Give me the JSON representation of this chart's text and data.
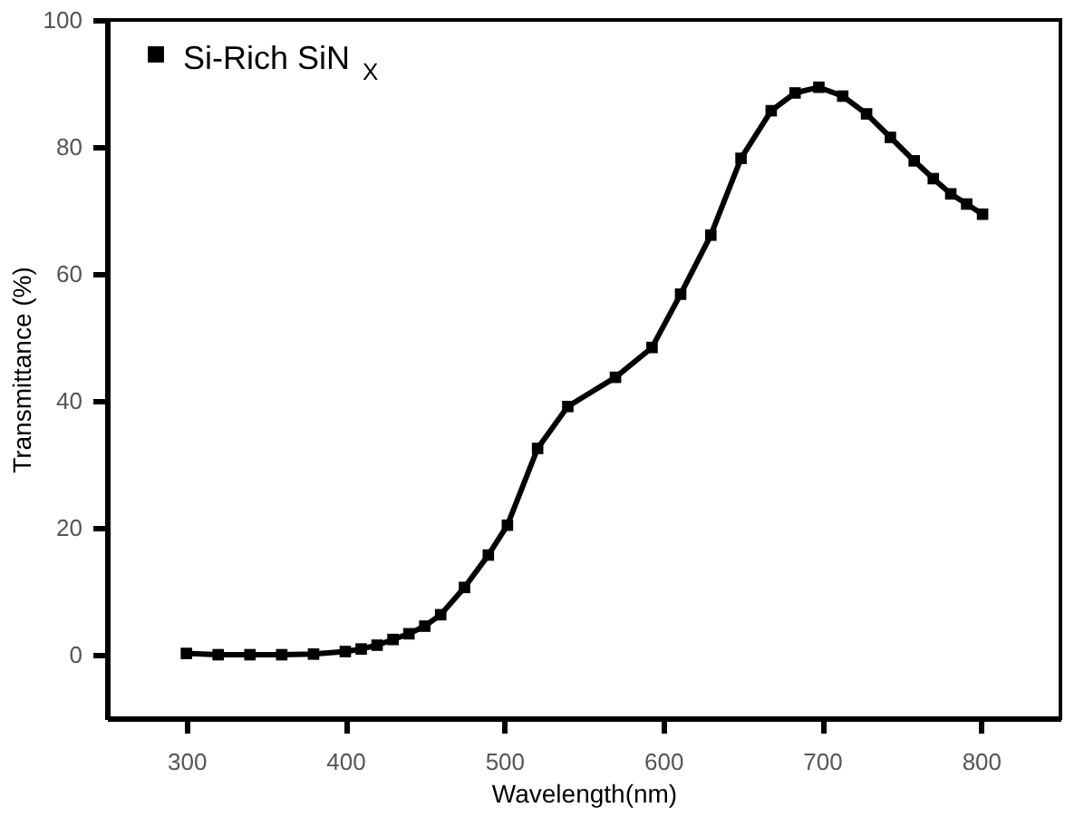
{
  "chart_data": {
    "type": "line",
    "xlabel": "Wavelength(nm)",
    "ylabel": "Transmittance (%)",
    "xlim": [
      250,
      850
    ],
    "ylim": [
      -10,
      100
    ],
    "xticks": [
      300,
      400,
      500,
      600,
      700,
      800
    ],
    "yticks": [
      0,
      20,
      40,
      60,
      80,
      100
    ],
    "grid": false,
    "legend": "top left",
    "marker": "square",
    "line_style": "solid",
    "series": [
      {
        "name": "Si-Rich SiN$_{X}$",
        "color": "#000000",
        "x": [
          300,
          320,
          340,
          360,
          380,
          400,
          410,
          420,
          430,
          440,
          450,
          460,
          475,
          490,
          502,
          521,
          540,
          570,
          593,
          611,
          630,
          649,
          668,
          683,
          698,
          713,
          728,
          743,
          758,
          770,
          781,
          791,
          801
        ],
        "values": [
          0.2,
          0,
          0,
          0,
          0.1,
          0.5,
          0.9,
          1.5,
          2.4,
          3.3,
          4.5,
          6.3,
          10.6,
          15.7,
          20.4,
          32.5,
          39.1,
          43.7,
          48.4,
          56.8,
          66.1,
          78.2,
          85.7,
          88.5,
          89.4,
          88.0,
          85.2,
          81.5,
          77.8,
          75.0,
          72.6,
          71.0,
          69.4
        ]
      }
    ]
  }
}
